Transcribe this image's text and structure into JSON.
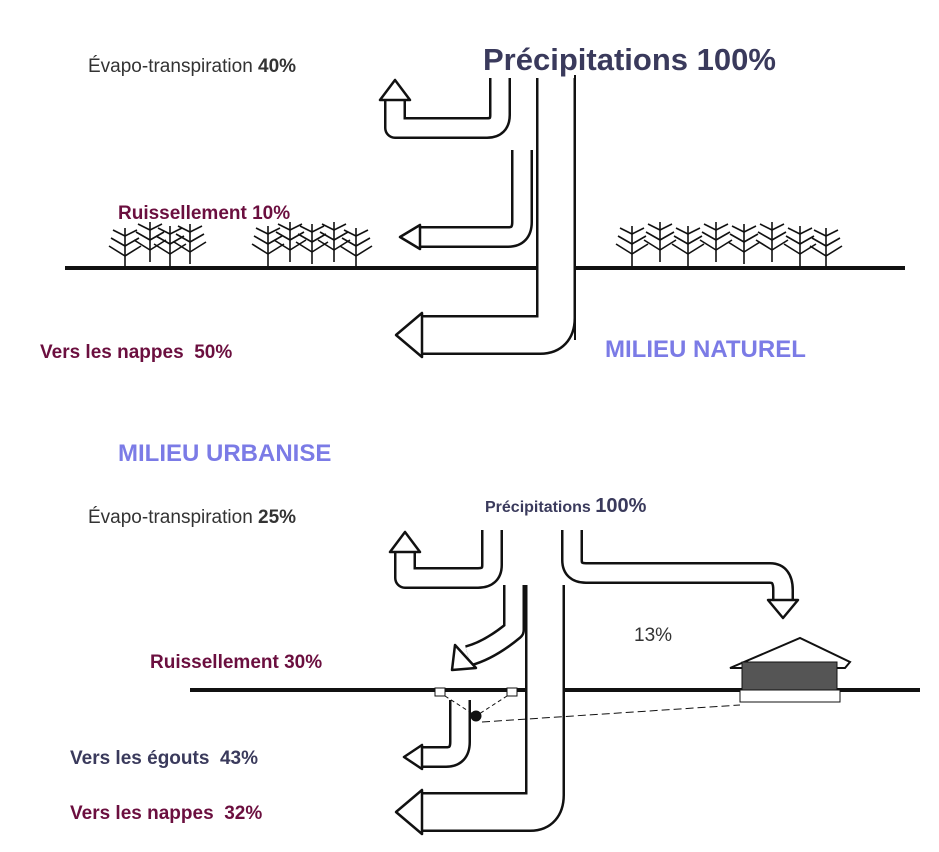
{
  "natural": {
    "precipitation": {
      "label": "Précipitations",
      "value": "100%"
    },
    "evapotranspiration": {
      "label": "Évapo-transpiration",
      "value": "40%"
    },
    "runoff": {
      "label": "Ruissellement",
      "value": "10%"
    },
    "groundwater": {
      "label": "Vers les nappes",
      "value": "50%"
    },
    "title": "MILIEU NATUREL"
  },
  "urban": {
    "title": "MILIEU URBANISE",
    "precipitation": {
      "label": "Précipitations",
      "value": "100%"
    },
    "evapotranspiration": {
      "label": "Évapo-transpiration",
      "value": "25%"
    },
    "roof": {
      "value": "13%"
    },
    "runoff": {
      "label": "Ruissellement",
      "value": "30%"
    },
    "sewers": {
      "label": "Vers les égouts",
      "value": "43%"
    },
    "groundwater": {
      "label": "Vers les nappes",
      "value": "32%"
    }
  }
}
